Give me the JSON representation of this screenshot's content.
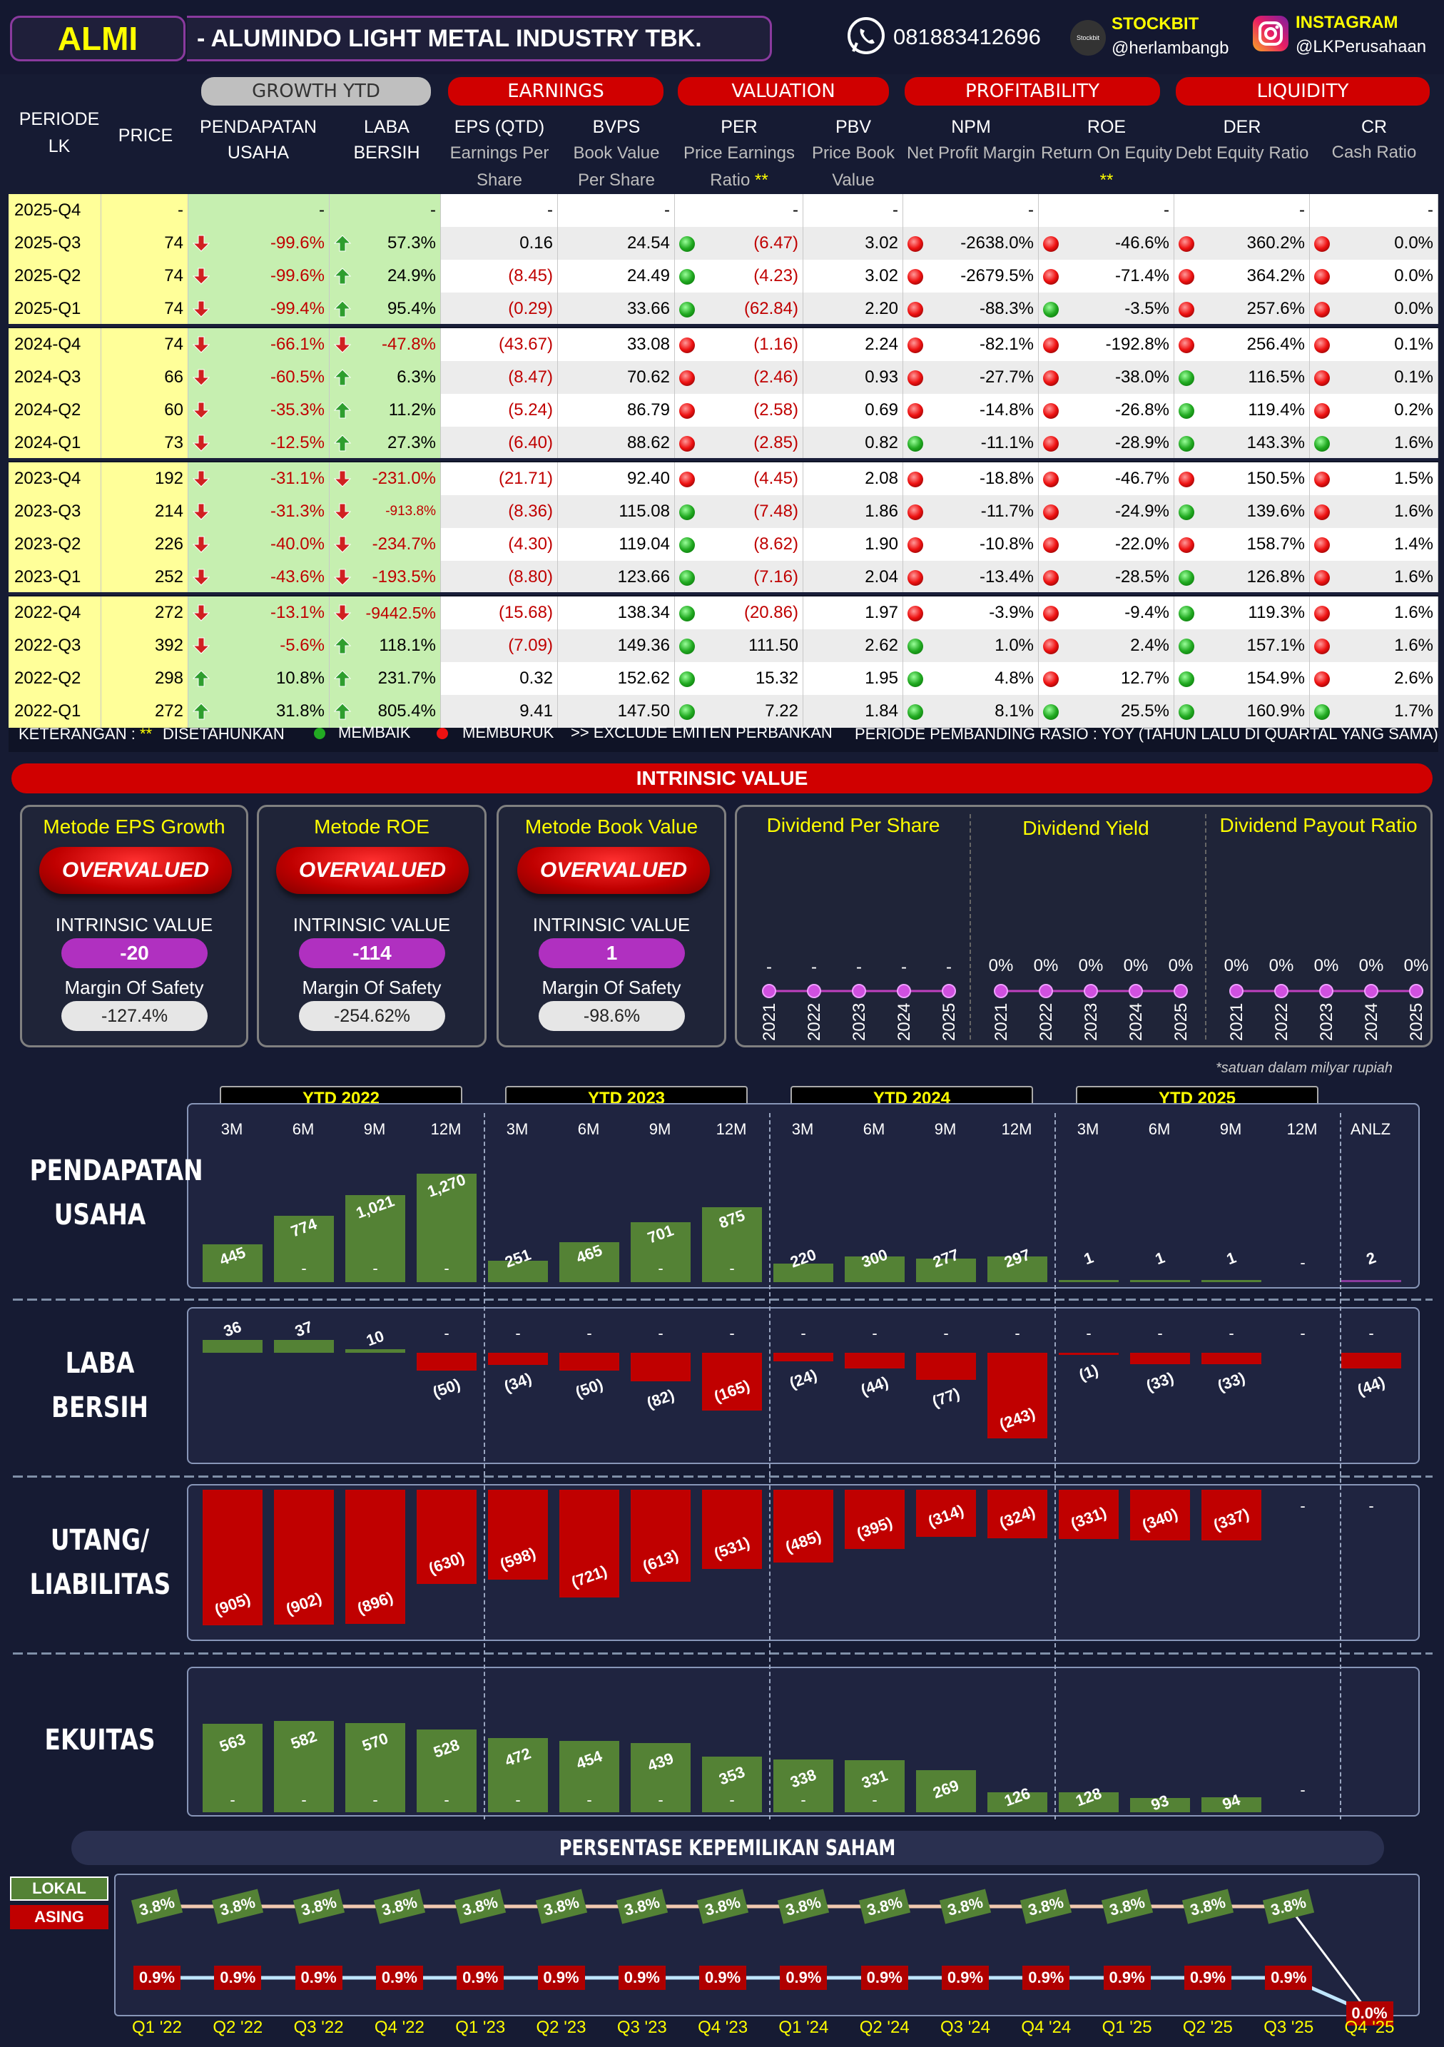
{
  "header": {
    "ticker": "ALMI",
    "company": "-  ALUMINDO LIGHT METAL INDUSTRY TBK.",
    "phone": "081883412696",
    "stockbit_label": "STOCKBIT",
    "stockbit_handle": "@herlambangb",
    "stockbit_logo_text": "Stockbit",
    "instagram_label": "INSTAGRAM",
    "instagram_handle": "@LKPerusahaan"
  },
  "table": {
    "groups": {
      "growth": "GROWTH YTD",
      "earnings": "EARNINGS",
      "valuation": "VALUATION",
      "profitability": "PROFITABILITY",
      "liquidity": "LIQUIDITY"
    },
    "columns": {
      "periode": "PERIODE LK",
      "price": "PRICE",
      "pendapatan_1": "PENDAPATAN",
      "pendapatan_2": "USAHA",
      "laba_1": "LABA",
      "laba_2": "BERSIH",
      "eps": "EPS (QTD)",
      "eps_sub": "Earnings Per Share",
      "bvps": "BVPS",
      "bvps_sub": "Book Value Per Share",
      "per": "PER",
      "per_sub": "Price Earnings Ratio",
      "pbv": "PBV",
      "pbv_sub": "Price Book Value",
      "npm": "NPM",
      "npm_sub": "Net Profit Margin",
      "roe": "ROE",
      "roe_sub": "Return On Equity",
      "der": "DER",
      "der_sub": "Debt Equity Ratio",
      "cr": "CR",
      "cr_sub": "Cash Ratio",
      "stars": "**"
    },
    "rows": [
      {
        "periode": "2025-Q4",
        "price": "-",
        "rev": "-",
        "rev_d": "",
        "np": "-",
        "np_d": "",
        "eps": "-",
        "bvps": "-",
        "per": "-",
        "per_s": "",
        "pbv": "-",
        "npm": "-",
        "npm_s": "",
        "roe": "-",
        "roe_s": "",
        "der": "-",
        "der_s": "",
        "cr": "-",
        "cr_s": ""
      },
      {
        "periode": "2025-Q3",
        "price": "74",
        "rev": "-99.6%",
        "rev_d": "down",
        "np": "57.3%",
        "np_d": "up",
        "eps": "0.16",
        "bvps": "24.54",
        "per": "(6.47)",
        "per_s": "g",
        "pbv": "3.02",
        "npm": "-2638.0%",
        "npm_s": "r",
        "roe": "-46.6%",
        "roe_s": "r",
        "der": "360.2%",
        "der_s": "r",
        "cr": "0.0%",
        "cr_s": "r"
      },
      {
        "periode": "2025-Q2",
        "price": "74",
        "rev": "-99.6%",
        "rev_d": "down",
        "np": "24.9%",
        "np_d": "up",
        "eps": "(8.45)",
        "bvps": "24.49",
        "per": "(4.23)",
        "per_s": "g",
        "pbv": "3.02",
        "npm": "-2679.5%",
        "npm_s": "r",
        "roe": "-71.4%",
        "roe_s": "r",
        "der": "364.2%",
        "der_s": "r",
        "cr": "0.0%",
        "cr_s": "r"
      },
      {
        "periode": "2025-Q1",
        "price": "74",
        "rev": "-99.4%",
        "rev_d": "down",
        "np": "95.4%",
        "np_d": "up",
        "eps": "(0.29)",
        "bvps": "33.66",
        "per": "(62.84)",
        "per_s": "g",
        "pbv": "2.20",
        "npm": "-88.3%",
        "npm_s": "r",
        "roe": "-3.5%",
        "roe_s": "g",
        "der": "257.6%",
        "der_s": "r",
        "cr": "0.0%",
        "cr_s": "r"
      },
      {
        "periode": "2024-Q4",
        "price": "74",
        "rev": "-66.1%",
        "rev_d": "down",
        "np": "-47.8%",
        "np_d": "down",
        "eps": "(43.67)",
        "bvps": "33.08",
        "per": "(1.16)",
        "per_s": "r",
        "pbv": "2.24",
        "npm": "-82.1%",
        "npm_s": "r",
        "roe": "-192.8%",
        "roe_s": "r",
        "der": "256.4%",
        "der_s": "r",
        "cr": "0.1%",
        "cr_s": "r"
      },
      {
        "periode": "2024-Q3",
        "price": "66",
        "rev": "-60.5%",
        "rev_d": "down",
        "np": "6.3%",
        "np_d": "up",
        "eps": "(8.47)",
        "bvps": "70.62",
        "per": "(2.46)",
        "per_s": "r",
        "pbv": "0.93",
        "npm": "-27.7%",
        "npm_s": "r",
        "roe": "-38.0%",
        "roe_s": "r",
        "der": "116.5%",
        "der_s": "g",
        "cr": "0.1%",
        "cr_s": "r"
      },
      {
        "periode": "2024-Q2",
        "price": "60",
        "rev": "-35.3%",
        "rev_d": "down",
        "np": "11.2%",
        "np_d": "up",
        "eps": "(5.24)",
        "bvps": "86.79",
        "per": "(2.58)",
        "per_s": "r",
        "pbv": "0.69",
        "npm": "-14.8%",
        "npm_s": "r",
        "roe": "-26.8%",
        "roe_s": "r",
        "der": "119.4%",
        "der_s": "g",
        "cr": "0.2%",
        "cr_s": "r"
      },
      {
        "periode": "2024-Q1",
        "price": "73",
        "rev": "-12.5%",
        "rev_d": "down",
        "np": "27.3%",
        "np_d": "up",
        "eps": "(6.40)",
        "bvps": "88.62",
        "per": "(2.85)",
        "per_s": "r",
        "pbv": "0.82",
        "npm": "-11.1%",
        "npm_s": "g",
        "roe": "-28.9%",
        "roe_s": "r",
        "der": "143.3%",
        "der_s": "g",
        "cr": "1.6%",
        "cr_s": "g"
      },
      {
        "periode": "2023-Q4",
        "price": "192",
        "rev": "-31.1%",
        "rev_d": "down",
        "np": "-231.0%",
        "np_d": "down",
        "eps": "(21.71)",
        "bvps": "92.40",
        "per": "(4.45)",
        "per_s": "r",
        "pbv": "2.08",
        "npm": "-18.8%",
        "npm_s": "r",
        "roe": "-46.7%",
        "roe_s": "r",
        "der": "150.5%",
        "der_s": "r",
        "cr": "1.5%",
        "cr_s": "r"
      },
      {
        "periode": "2023-Q3",
        "price": "214",
        "rev": "-31.3%",
        "rev_d": "down",
        "np": "-913.8%",
        "np_d": "down",
        "eps": "(8.36)",
        "bvps": "115.08",
        "per": "(7.48)",
        "per_s": "g",
        "pbv": "1.86",
        "npm": "-11.7%",
        "npm_s": "r",
        "roe": "-24.9%",
        "roe_s": "r",
        "der": "139.6%",
        "der_s": "g",
        "cr": "1.6%",
        "cr_s": "r"
      },
      {
        "periode": "2023-Q2",
        "price": "226",
        "rev": "-40.0%",
        "rev_d": "down",
        "np": "-234.7%",
        "np_d": "down",
        "eps": "(4.30)",
        "bvps": "119.04",
        "per": "(8.62)",
        "per_s": "g",
        "pbv": "1.90",
        "npm": "-10.8%",
        "npm_s": "r",
        "roe": "-22.0%",
        "roe_s": "r",
        "der": "158.7%",
        "der_s": "r",
        "cr": "1.4%",
        "cr_s": "r"
      },
      {
        "periode": "2023-Q1",
        "price": "252",
        "rev": "-43.6%",
        "rev_d": "down",
        "np": "-193.5%",
        "np_d": "down",
        "eps": "(8.80)",
        "bvps": "123.66",
        "per": "(7.16)",
        "per_s": "g",
        "pbv": "2.04",
        "npm": "-13.4%",
        "npm_s": "r",
        "roe": "-28.5%",
        "roe_s": "r",
        "der": "126.8%",
        "der_s": "g",
        "cr": "1.6%",
        "cr_s": "r"
      },
      {
        "periode": "2022-Q4",
        "price": "272",
        "rev": "-13.1%",
        "rev_d": "down",
        "np": "-9442.5%",
        "np_d": "down",
        "eps": "(15.68)",
        "bvps": "138.34",
        "per": "(20.86)",
        "per_s": "g",
        "pbv": "1.97",
        "npm": "-3.9%",
        "npm_s": "r",
        "roe": "-9.4%",
        "roe_s": "r",
        "der": "119.3%",
        "der_s": "g",
        "cr": "1.6%",
        "cr_s": "r"
      },
      {
        "periode": "2022-Q3",
        "price": "392",
        "rev": "-5.6%",
        "rev_d": "down",
        "np": "118.1%",
        "np_d": "up",
        "eps": "(7.09)",
        "bvps": "149.36",
        "per": "111.50",
        "per_s": "g",
        "pbv": "2.62",
        "npm": "1.0%",
        "npm_s": "g",
        "roe": "2.4%",
        "roe_s": "r",
        "der": "157.1%",
        "der_s": "g",
        "cr": "1.6%",
        "cr_s": "r"
      },
      {
        "periode": "2022-Q2",
        "price": "298",
        "rev": "10.8%",
        "rev_d": "up",
        "np": "231.7%",
        "np_d": "up",
        "eps": "0.32",
        "bvps": "152.62",
        "per": "15.32",
        "per_s": "g",
        "pbv": "1.95",
        "npm": "4.8%",
        "npm_s": "g",
        "roe": "12.7%",
        "roe_s": "r",
        "der": "154.9%",
        "der_s": "g",
        "cr": "2.6%",
        "cr_s": "r"
      },
      {
        "periode": "2022-Q1",
        "price": "272",
        "rev": "31.8%",
        "rev_d": "up",
        "np": "805.4%",
        "np_d": "up",
        "eps": "9.41",
        "bvps": "147.50",
        "per": "7.22",
        "per_s": "g",
        "pbv": "1.84",
        "npm": "8.1%",
        "npm_s": "g",
        "roe": "25.5%",
        "roe_s": "g",
        "der": "160.9%",
        "der_s": "g",
        "cr": "1.7%",
        "cr_s": "g"
      }
    ],
    "legend": {
      "keterangan": "KETERANGAN :",
      "stars": "**",
      "disetahunkan": "DISETAHUNKAN",
      "membaik": "MEMBAIK",
      "memburuk": "MEMBURUK",
      "exclude": ">> EXCLUDE EMITEN PERBANKAN",
      "pembanding": "PERIODE PEMBANDING RASIO : YOY (TAHUN LALU DI QUARTAL YANG SAMA)"
    },
    "colors": {
      "up_arrow": "#2e9e2e",
      "down_arrow": "#d02020",
      "year_band": "#ffff99",
      "growth_band": "#c6efb0",
      "good": "#22aa22",
      "bad": "#dd1111"
    }
  },
  "intrinsic": {
    "title": "INTRINSIC VALUE",
    "cards": [
      {
        "title": "Metode EPS Growth",
        "status": "OVERVALUED",
        "iv_label": "INTRINSIC VALUE",
        "iv": "-20",
        "mos_label": "Margin Of Safety",
        "mos": "-127.4%"
      },
      {
        "title": "Metode ROE",
        "status": "OVERVALUED",
        "iv_label": "INTRINSIC VALUE",
        "iv": "-114",
        "mos_label": "Margin Of Safety",
        "mos": "-254.62%"
      },
      {
        "title": "Metode Book Value",
        "status": "OVERVALUED",
        "iv_label": "INTRINSIC VALUE",
        "iv": "1",
        "mos_label": "Margin Of Safety",
        "mos": "-98.6%"
      }
    ],
    "dividend": {
      "titles": [
        "Dividend Per Share",
        "Dividend Yield",
        "Dividend Payout Ratio"
      ],
      "years": [
        "2021",
        "2022",
        "2023",
        "2024",
        "2025"
      ],
      "dps": [
        "-",
        "-",
        "-",
        "-",
        "-"
      ],
      "yield": [
        "0%",
        "0%",
        "0%",
        "0%",
        "0%"
      ],
      "payout": [
        "0%",
        "0%",
        "0%",
        "0%",
        "0%"
      ]
    }
  },
  "chart_data": [
    {
      "type": "bar",
      "title": "PENDAPATAN USAHA",
      "note": "*satuan dalam milyar rupiah",
      "groups": [
        "YTD 2022",
        "YTD 2023",
        "YTD 2024",
        "YTD 2025"
      ],
      "categories": [
        "3M",
        "6M",
        "9M",
        "12M",
        "3M",
        "6M",
        "9M",
        "12M",
        "3M",
        "6M",
        "9M",
        "12M",
        "3M",
        "6M",
        "9M",
        "12M",
        "ANLZ"
      ],
      "values": [
        445,
        774,
        1021,
        1270,
        251,
        465,
        701,
        875,
        220,
        300,
        277,
        297,
        1,
        1,
        1,
        null,
        2
      ],
      "labels": [
        "445",
        "774",
        "1,021",
        "1,270",
        "251",
        "465",
        "701",
        "875",
        "220",
        "300",
        "277",
        "297",
        "1",
        "1",
        "1",
        "-",
        "2"
      ]
    },
    {
      "type": "bar",
      "title": "LABA BERSIH",
      "categories": [
        "3M",
        "6M",
        "9M",
        "12M",
        "3M",
        "6M",
        "9M",
        "12M",
        "3M",
        "6M",
        "9M",
        "12M",
        "3M",
        "6M",
        "9M",
        "12M",
        "ANLZ"
      ],
      "values": [
        36,
        37,
        10,
        -50,
        -34,
        -50,
        -82,
        -165,
        -24,
        -44,
        -77,
        -243,
        -1,
        -33,
        -33,
        null,
        -44
      ],
      "labels": [
        "36",
        "37",
        "10",
        "(50)",
        "(34)",
        "(50)",
        "(82)",
        "(165)",
        "(24)",
        "(44)",
        "(77)",
        "(243)",
        "(1)",
        "(33)",
        "(33)",
        "-",
        "(44)"
      ]
    },
    {
      "type": "bar",
      "title": "UTANG/ LIABILITAS",
      "categories": [
        "3M",
        "6M",
        "9M",
        "12M",
        "3M",
        "6M",
        "9M",
        "12M",
        "3M",
        "6M",
        "9M",
        "12M",
        "3M",
        "6M",
        "9M",
        "12M",
        "ANLZ"
      ],
      "values": [
        -905,
        -902,
        -896,
        -630,
        -598,
        -721,
        -613,
        -531,
        -485,
        -395,
        -314,
        -324,
        -331,
        -340,
        -337,
        null,
        null
      ],
      "labels": [
        "(905)",
        "(902)",
        "(896)",
        "(630)",
        "(598)",
        "(721)",
        "(613)",
        "(531)",
        "(485)",
        "(395)",
        "(314)",
        "(324)",
        "(331)",
        "(340)",
        "(337)",
        "-",
        "-"
      ]
    },
    {
      "type": "bar",
      "title": "EKUITAS",
      "categories": [
        "3M",
        "6M",
        "9M",
        "12M",
        "3M",
        "6M",
        "9M",
        "12M",
        "3M",
        "6M",
        "9M",
        "12M",
        "3M",
        "6M",
        "9M",
        "12M"
      ],
      "values": [
        563,
        582,
        570,
        528,
        472,
        454,
        439,
        353,
        338,
        331,
        269,
        126,
        128,
        93,
        94,
        null
      ],
      "labels": [
        "563",
        "582",
        "570",
        "528",
        "472",
        "454",
        "439",
        "353",
        "338",
        "331",
        "269",
        "126",
        "128",
        "93",
        "94",
        "-"
      ]
    },
    {
      "type": "line",
      "title": "PERSENTASE KEPEMILIKAN SAHAM",
      "x": [
        "Q1 '22",
        "Q2 '22",
        "Q3 '22",
        "Q4 '22",
        "Q1 '23",
        "Q2 '23",
        "Q3 '23",
        "Q4 '23",
        "Q1 '24",
        "Q2 '24",
        "Q3 '24",
        "Q4 '24",
        "Q1 '25",
        "Q2 '25",
        "Q3 '25",
        "Q4 '25"
      ],
      "series": [
        {
          "name": "LOKAL",
          "values": [
            3.8,
            3.8,
            3.8,
            3.8,
            3.8,
            3.8,
            3.8,
            3.8,
            3.8,
            3.8,
            3.8,
            3.8,
            3.8,
            3.8,
            3.8,
            null
          ],
          "labels": [
            "3.8%",
            "3.8%",
            "3.8%",
            "3.8%",
            "3.8%",
            "3.8%",
            "3.8%",
            "3.8%",
            "3.8%",
            "3.8%",
            "3.8%",
            "3.8%",
            "3.8%",
            "3.8%",
            "3.8%",
            ""
          ]
        },
        {
          "name": "ASING",
          "values": [
            0.9,
            0.9,
            0.9,
            0.9,
            0.9,
            0.9,
            0.9,
            0.9,
            0.9,
            0.9,
            0.9,
            0.9,
            0.9,
            0.9,
            0.9,
            0.0
          ],
          "labels": [
            "0.9%",
            "0.9%",
            "0.9%",
            "0.9%",
            "0.9%",
            "0.9%",
            "0.9%",
            "0.9%",
            "0.9%",
            "0.9%",
            "0.9%",
            "0.9%",
            "0.9%",
            "0.9%",
            "0.9%",
            "0.0%"
          ]
        }
      ],
      "colors": {
        "lokal": "#548235",
        "asing": "#b00000"
      }
    }
  ],
  "sections": {
    "pendapatan_1": "PENDAPATAN",
    "pendapatan_2": "USAHA",
    "laba_1": "LABA",
    "laba_2": "BERSIH",
    "utang_1": "UTANG/",
    "utang_2": "LIABILITAS",
    "ekuitas": "EKUITAS"
  }
}
